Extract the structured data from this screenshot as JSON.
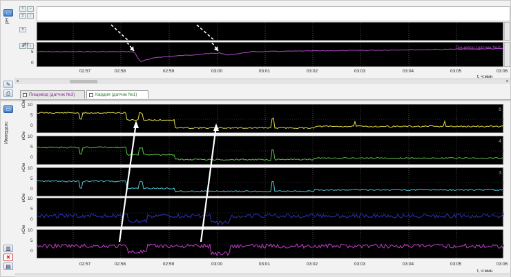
{
  "top_panel": {
    "ylabel": "pH",
    "yticks": [
      "5",
      "0"
    ],
    "legend_label": "Пищевод (датчик №3)",
    "x_unit": "t, ч:мин"
  },
  "x_ticks": [
    "02:57",
    "02:58",
    "02:59",
    "03:00",
    "03:01",
    "03:02",
    "03:03",
    "03:04",
    "03:05",
    "03:06"
  ],
  "tabs": [
    {
      "label": "Пищевод (датчик №3)"
    },
    {
      "label": "Кардия (датчик №1)"
    }
  ],
  "bottom_panel": {
    "side_label": "Импеданс",
    "unit": "кОм",
    "yticks": [
      "10",
      "5",
      "0"
    ],
    "channel_numbers": [
      "5",
      "4",
      "3"
    ],
    "x_unit": "t, ч:мин"
  },
  "colors": {
    "ph": "#b44ac8",
    "ch5": "#e6e04a",
    "ch4": "#5cc44a",
    "ch3": "#56c8d8",
    "ch2": "#3030b8",
    "ch1": "#c040c8",
    "annotation": "#ffffff"
  },
  "icons": {
    "toolbar_top": "monitor-icon",
    "toolbar_bottom": "delete-icon"
  }
}
